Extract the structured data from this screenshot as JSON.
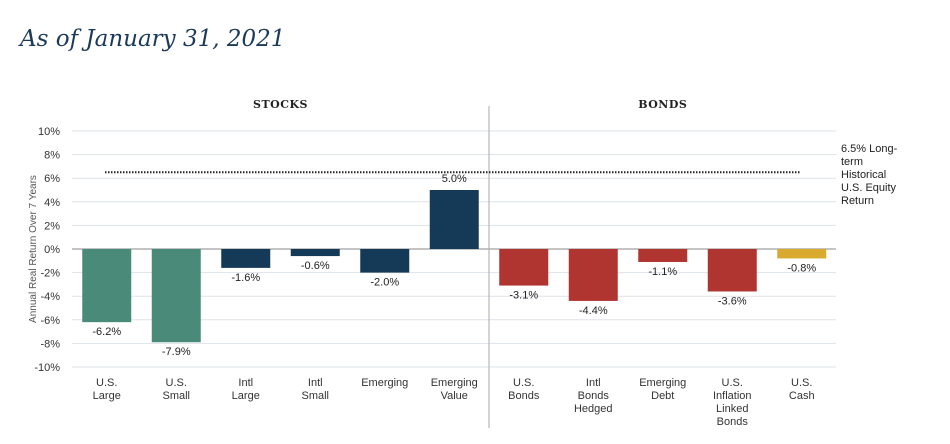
{
  "header": {
    "title": "As of January 31, 2021"
  },
  "chart_data": {
    "type": "bar",
    "ylabel": "Annual Real Return Over 7 Years",
    "ylim": [
      -10,
      10
    ],
    "yticks": [
      "10%",
      "8%",
      "6%",
      "4%",
      "2%",
      "0%",
      "-2%",
      "-4%",
      "-6%",
      "-8%",
      "-10%"
    ],
    "ytick_values": [
      10,
      8,
      6,
      4,
      2,
      0,
      -2,
      -4,
      -6,
      -8,
      -10
    ],
    "groups": [
      {
        "name": "STOCKS",
        "count": 6
      },
      {
        "name": "BONDS",
        "count": 5
      }
    ],
    "categories": [
      [
        "U.S.",
        "Large"
      ],
      [
        "U.S.",
        "Small"
      ],
      [
        "Intl",
        "Large"
      ],
      [
        "Intl",
        "Small"
      ],
      [
        "Emerging"
      ],
      [
        "Emerging",
        "Value"
      ],
      [
        "U.S.",
        "Bonds"
      ],
      [
        "Intl",
        "Bonds",
        "Hedged"
      ],
      [
        "Emerging",
        "Debt"
      ],
      [
        "U.S.",
        "Inflation",
        "Linked",
        "Bonds"
      ],
      [
        "U.S.",
        "Cash"
      ]
    ],
    "values": [
      -6.2,
      -7.9,
      -1.6,
      -0.6,
      -2.0,
      5.0,
      -3.1,
      -4.4,
      -1.1,
      -3.6,
      -0.8
    ],
    "labels": [
      "-6.2%",
      "-7.9%",
      "-1.6%",
      "-0.6%",
      "-2.0%",
      "5.0%",
      "-3.1%",
      "-4.4%",
      "-1.1%",
      "-3.6%",
      "-0.8%"
    ],
    "colors": [
      "#4a8a78",
      "#4a8a78",
      "#143a57",
      "#143a57",
      "#143a57",
      "#143a57",
      "#b03530",
      "#b03530",
      "#b03530",
      "#b03530",
      "#d8aa2e"
    ],
    "reference_line": {
      "value": 6.5,
      "label": [
        "6.5% Long-",
        "term",
        "Historical",
        "U.S. Equity",
        "Return"
      ],
      "style": "dotted"
    },
    "grid": true
  }
}
